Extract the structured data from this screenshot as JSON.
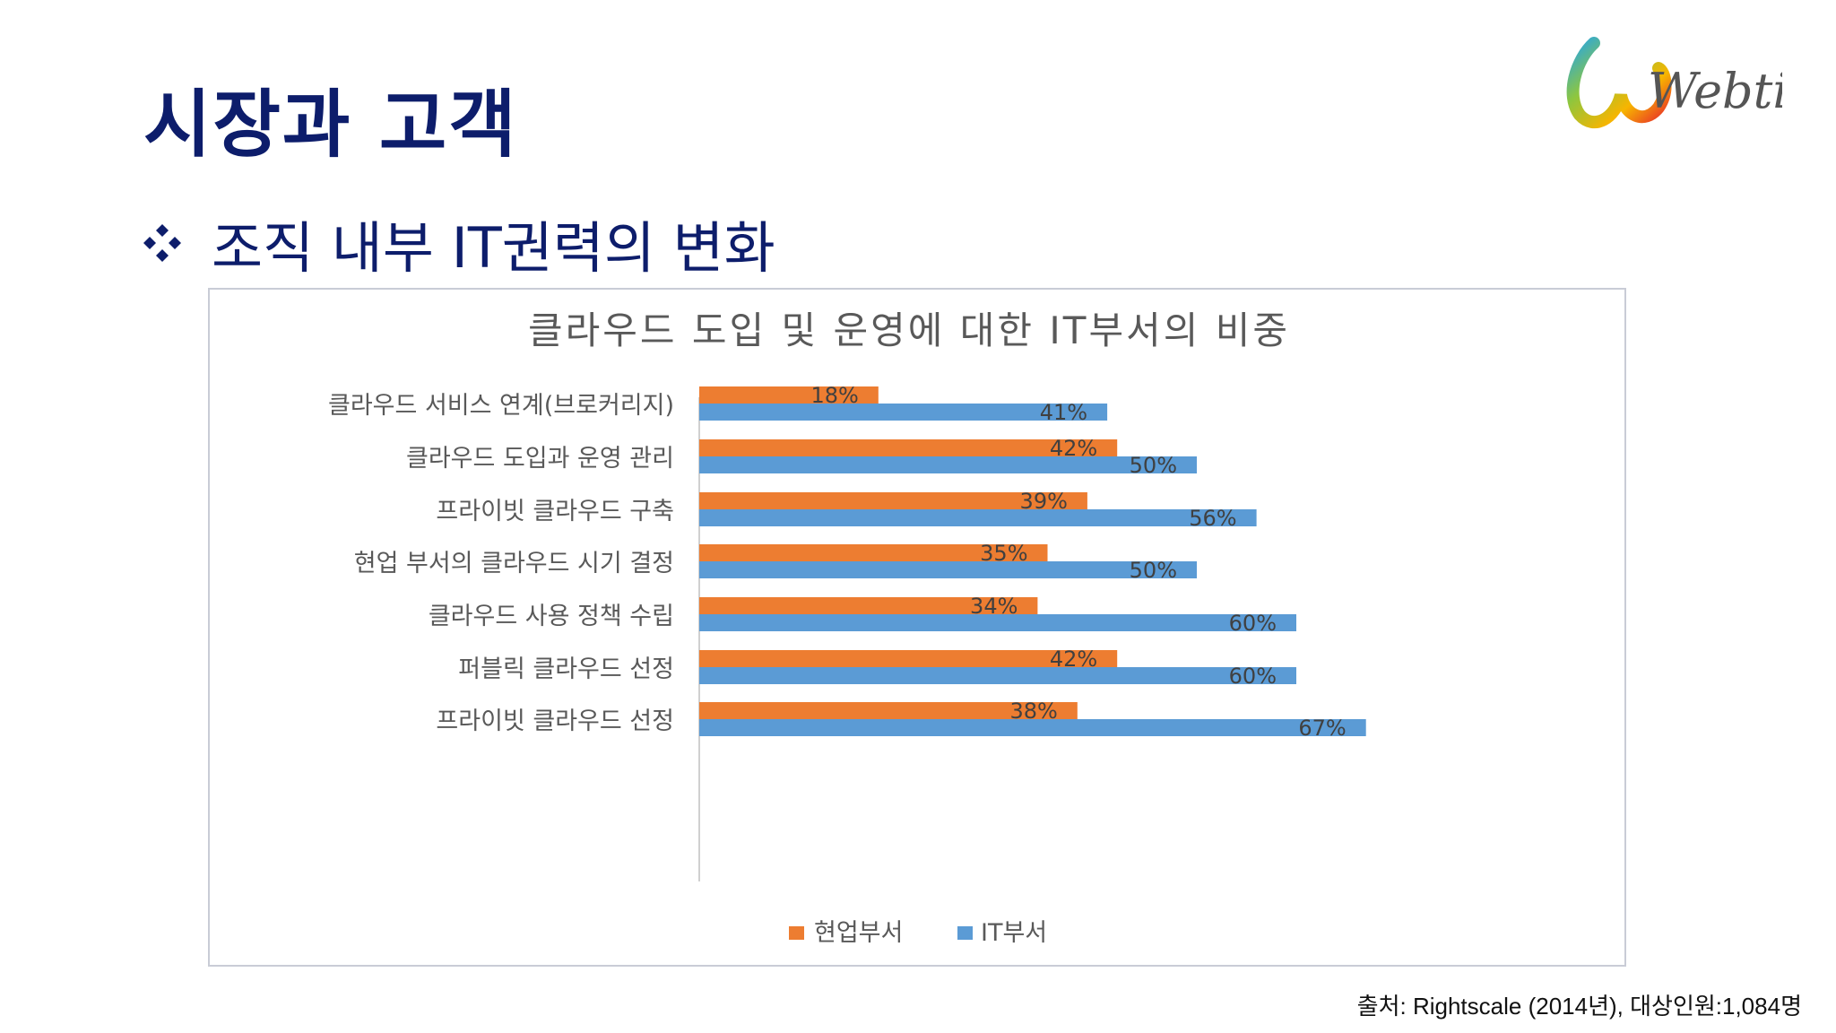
{
  "slide": {
    "title": "시장과 고객",
    "subtitle": "조직 내부 IT권력의 변화",
    "source": "출처: Rightscale (2014년), 대상인원:1,084명",
    "logo_text": "Webtime"
  },
  "colors": {
    "title": "#0d1d6b",
    "orange": "#ed7d31",
    "blue": "#5b9bd5"
  },
  "chart_data": {
    "type": "bar",
    "orientation": "horizontal",
    "title": "클라우드 도입 및 운영에 대한 IT부서의 비중",
    "categories": [
      "클라우드 서비스 연계(브로커리지)",
      "클라우드 도입과 운영 관리",
      "프라이빗 클라우드 구축",
      "현업 부서의 클라우드 시기 결정",
      "클라우드 사용 정책 수립",
      "퍼블릭 클라우드 선정",
      "프라이빗 클라우드 선정"
    ],
    "series": [
      {
        "name": "현업부서",
        "color": "#ed7d31",
        "values": [
          18,
          42,
          39,
          35,
          34,
          42,
          38
        ],
        "labels": [
          "18%",
          "42%",
          "39%",
          "35%",
          "34%",
          "42%",
          "38%"
        ]
      },
      {
        "name": "IT부서",
        "color": "#5b9bd5",
        "values": [
          41,
          50,
          56,
          50,
          60,
          60,
          67
        ],
        "labels": [
          "41%",
          "50%",
          "56%",
          "50%",
          "60%",
          "60%",
          "67%"
        ]
      }
    ],
    "unit": "%",
    "legend": "bottom",
    "grid": false
  }
}
